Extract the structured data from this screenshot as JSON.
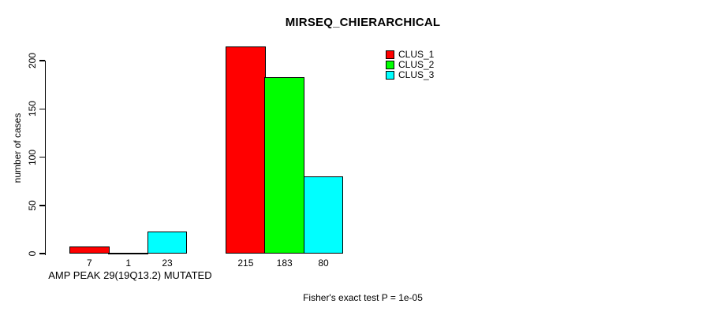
{
  "chart_data": {
    "type": "bar",
    "title": "MIRSEQ_CHIERARCHICAL",
    "xlabel": "",
    "ylabel": "number of cases",
    "categories": [
      "AMP PEAK 29(19Q13.2) MUTATED",
      ""
    ],
    "series": [
      {
        "name": "CLUS_1",
        "color": "#FF0000",
        "values": [
          7,
          215
        ]
      },
      {
        "name": "CLUS_2",
        "color": "#00FF00",
        "values": [
          1,
          183
        ]
      },
      {
        "name": "CLUS_3",
        "color": "#00FFFF",
        "values": [
          23,
          80
        ]
      }
    ],
    "bar_value_labels": [
      [
        "7",
        "1",
        "23"
      ],
      [
        "215",
        "183",
        "80"
      ]
    ],
    "y_ticks": [
      "0",
      "50",
      "100",
      "150",
      "200"
    ],
    "ylim": [
      0,
      215
    ],
    "grid": false,
    "legend_position": "top-right",
    "annotation": "Fisher's exact test P = 1e-05",
    "axis_color": "#000000",
    "bar_border_color": "#000000"
  }
}
